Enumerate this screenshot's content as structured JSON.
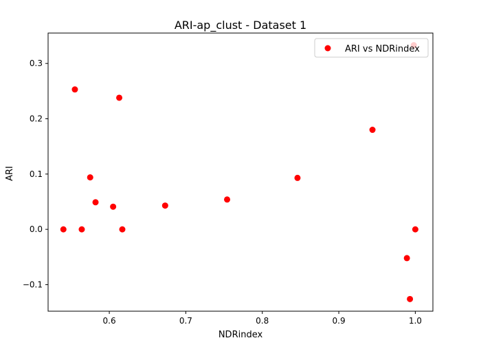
{
  "chart_data": {
    "type": "scatter",
    "title": "ARI-ap_clust - Dataset 1",
    "xlabel": "NDRindex",
    "ylabel": "ARI",
    "xlim": [
      0.52,
      1.023
    ],
    "ylim": [
      -0.148,
      0.355
    ],
    "x_ticks": [
      0.6,
      0.7,
      0.8,
      0.9,
      1.0
    ],
    "x_tick_labels": [
      "0.6",
      "0.7",
      "0.8",
      "0.9",
      "1.0"
    ],
    "y_ticks": [
      -0.1,
      0.0,
      0.1,
      0.2,
      0.3
    ],
    "y_tick_labels": [
      "−0.1",
      "0.0",
      "0.1",
      "0.2",
      "0.3"
    ],
    "grid": false,
    "legend_position": "top-right",
    "series": [
      {
        "name": "ARI vs NDRindex",
        "color": "#ff0000",
        "points": [
          {
            "x": 0.54,
            "y": 0.0
          },
          {
            "x": 0.555,
            "y": 0.253
          },
          {
            "x": 0.564,
            "y": 0.0
          },
          {
            "x": 0.575,
            "y": 0.094
          },
          {
            "x": 0.582,
            "y": 0.049
          },
          {
            "x": 0.605,
            "y": 0.041
          },
          {
            "x": 0.613,
            "y": 0.238
          },
          {
            "x": 0.617,
            "y": 0.0
          },
          {
            "x": 0.673,
            "y": 0.043
          },
          {
            "x": 0.754,
            "y": 0.054
          },
          {
            "x": 0.846,
            "y": 0.093
          },
          {
            "x": 0.944,
            "y": 0.18
          },
          {
            "x": 0.989,
            "y": -0.052
          },
          {
            "x": 0.993,
            "y": -0.126
          },
          {
            "x": 1.0,
            "y": 0.0
          },
          {
            "x": 0.998,
            "y": 0.333
          }
        ]
      }
    ]
  }
}
